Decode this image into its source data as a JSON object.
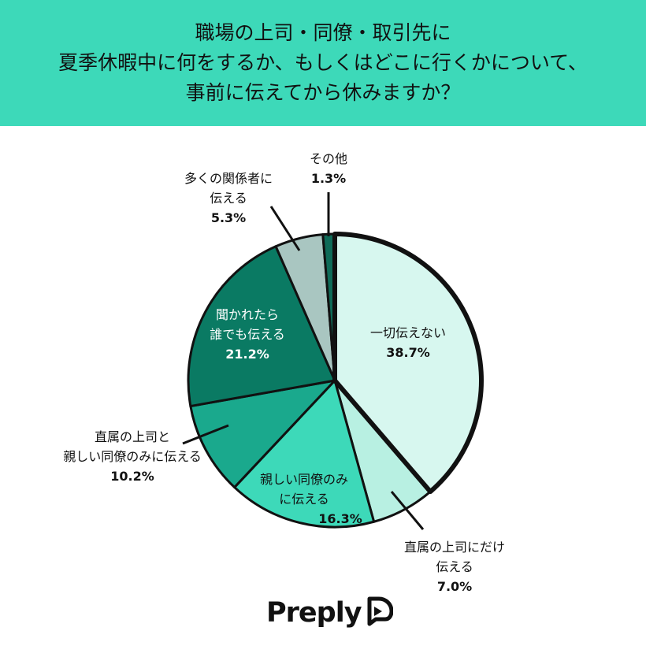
{
  "header": {
    "title_lines": [
      "職場の上司・同僚・取引先に",
      "夏季休暇中に何をするか、もしくはどこに行くかについて、",
      "事前に伝えてから休みますか？"
    ]
  },
  "colors": {
    "header_bg": "#3dd9b9",
    "text": "#111111",
    "outline": "#111111"
  },
  "chart_data": {
    "type": "pie",
    "title": "職場の上司・同僚・取引先に夏季休暇中に何をするか、もしくはどこに行くかについて、事前に伝えてから休みますか？",
    "slices": [
      {
        "label_lines": [
          "一切伝えない"
        ],
        "value": 38.7,
        "value_label": "38.7%",
        "color": "#d7f7ef",
        "emphasized": true
      },
      {
        "label_lines": [
          "直属の上司にだけ",
          "伝える"
        ],
        "value": 7.0,
        "value_label": "7.0%",
        "color": "#b8f0e2"
      },
      {
        "label_lines": [
          "親しい同僚のみ",
          "に伝える"
        ],
        "value": 16.3,
        "value_label": "16.3%",
        "color": "#3dd9b9"
      },
      {
        "label_lines": [
          "直属の上司と",
          "親しい同僚のみに伝える"
        ],
        "value": 10.2,
        "value_label": "10.2%",
        "color": "#1aa98d"
      },
      {
        "label_lines": [
          "聞かれたら",
          "誰でも伝える"
        ],
        "value": 21.2,
        "value_label": "21.2%",
        "color": "#0a7a63"
      },
      {
        "label_lines": [
          "多くの関係者に",
          "伝える"
        ],
        "value": 5.3,
        "value_label": "5.3%",
        "color": "#a9c6c1"
      },
      {
        "label_lines": [
          "その他"
        ],
        "value": 1.3,
        "value_label": "1.3%",
        "color": "#0f6b58"
      }
    ]
  },
  "brand": {
    "name": "Preply",
    "logo_icon": "preply-bird-icon"
  }
}
